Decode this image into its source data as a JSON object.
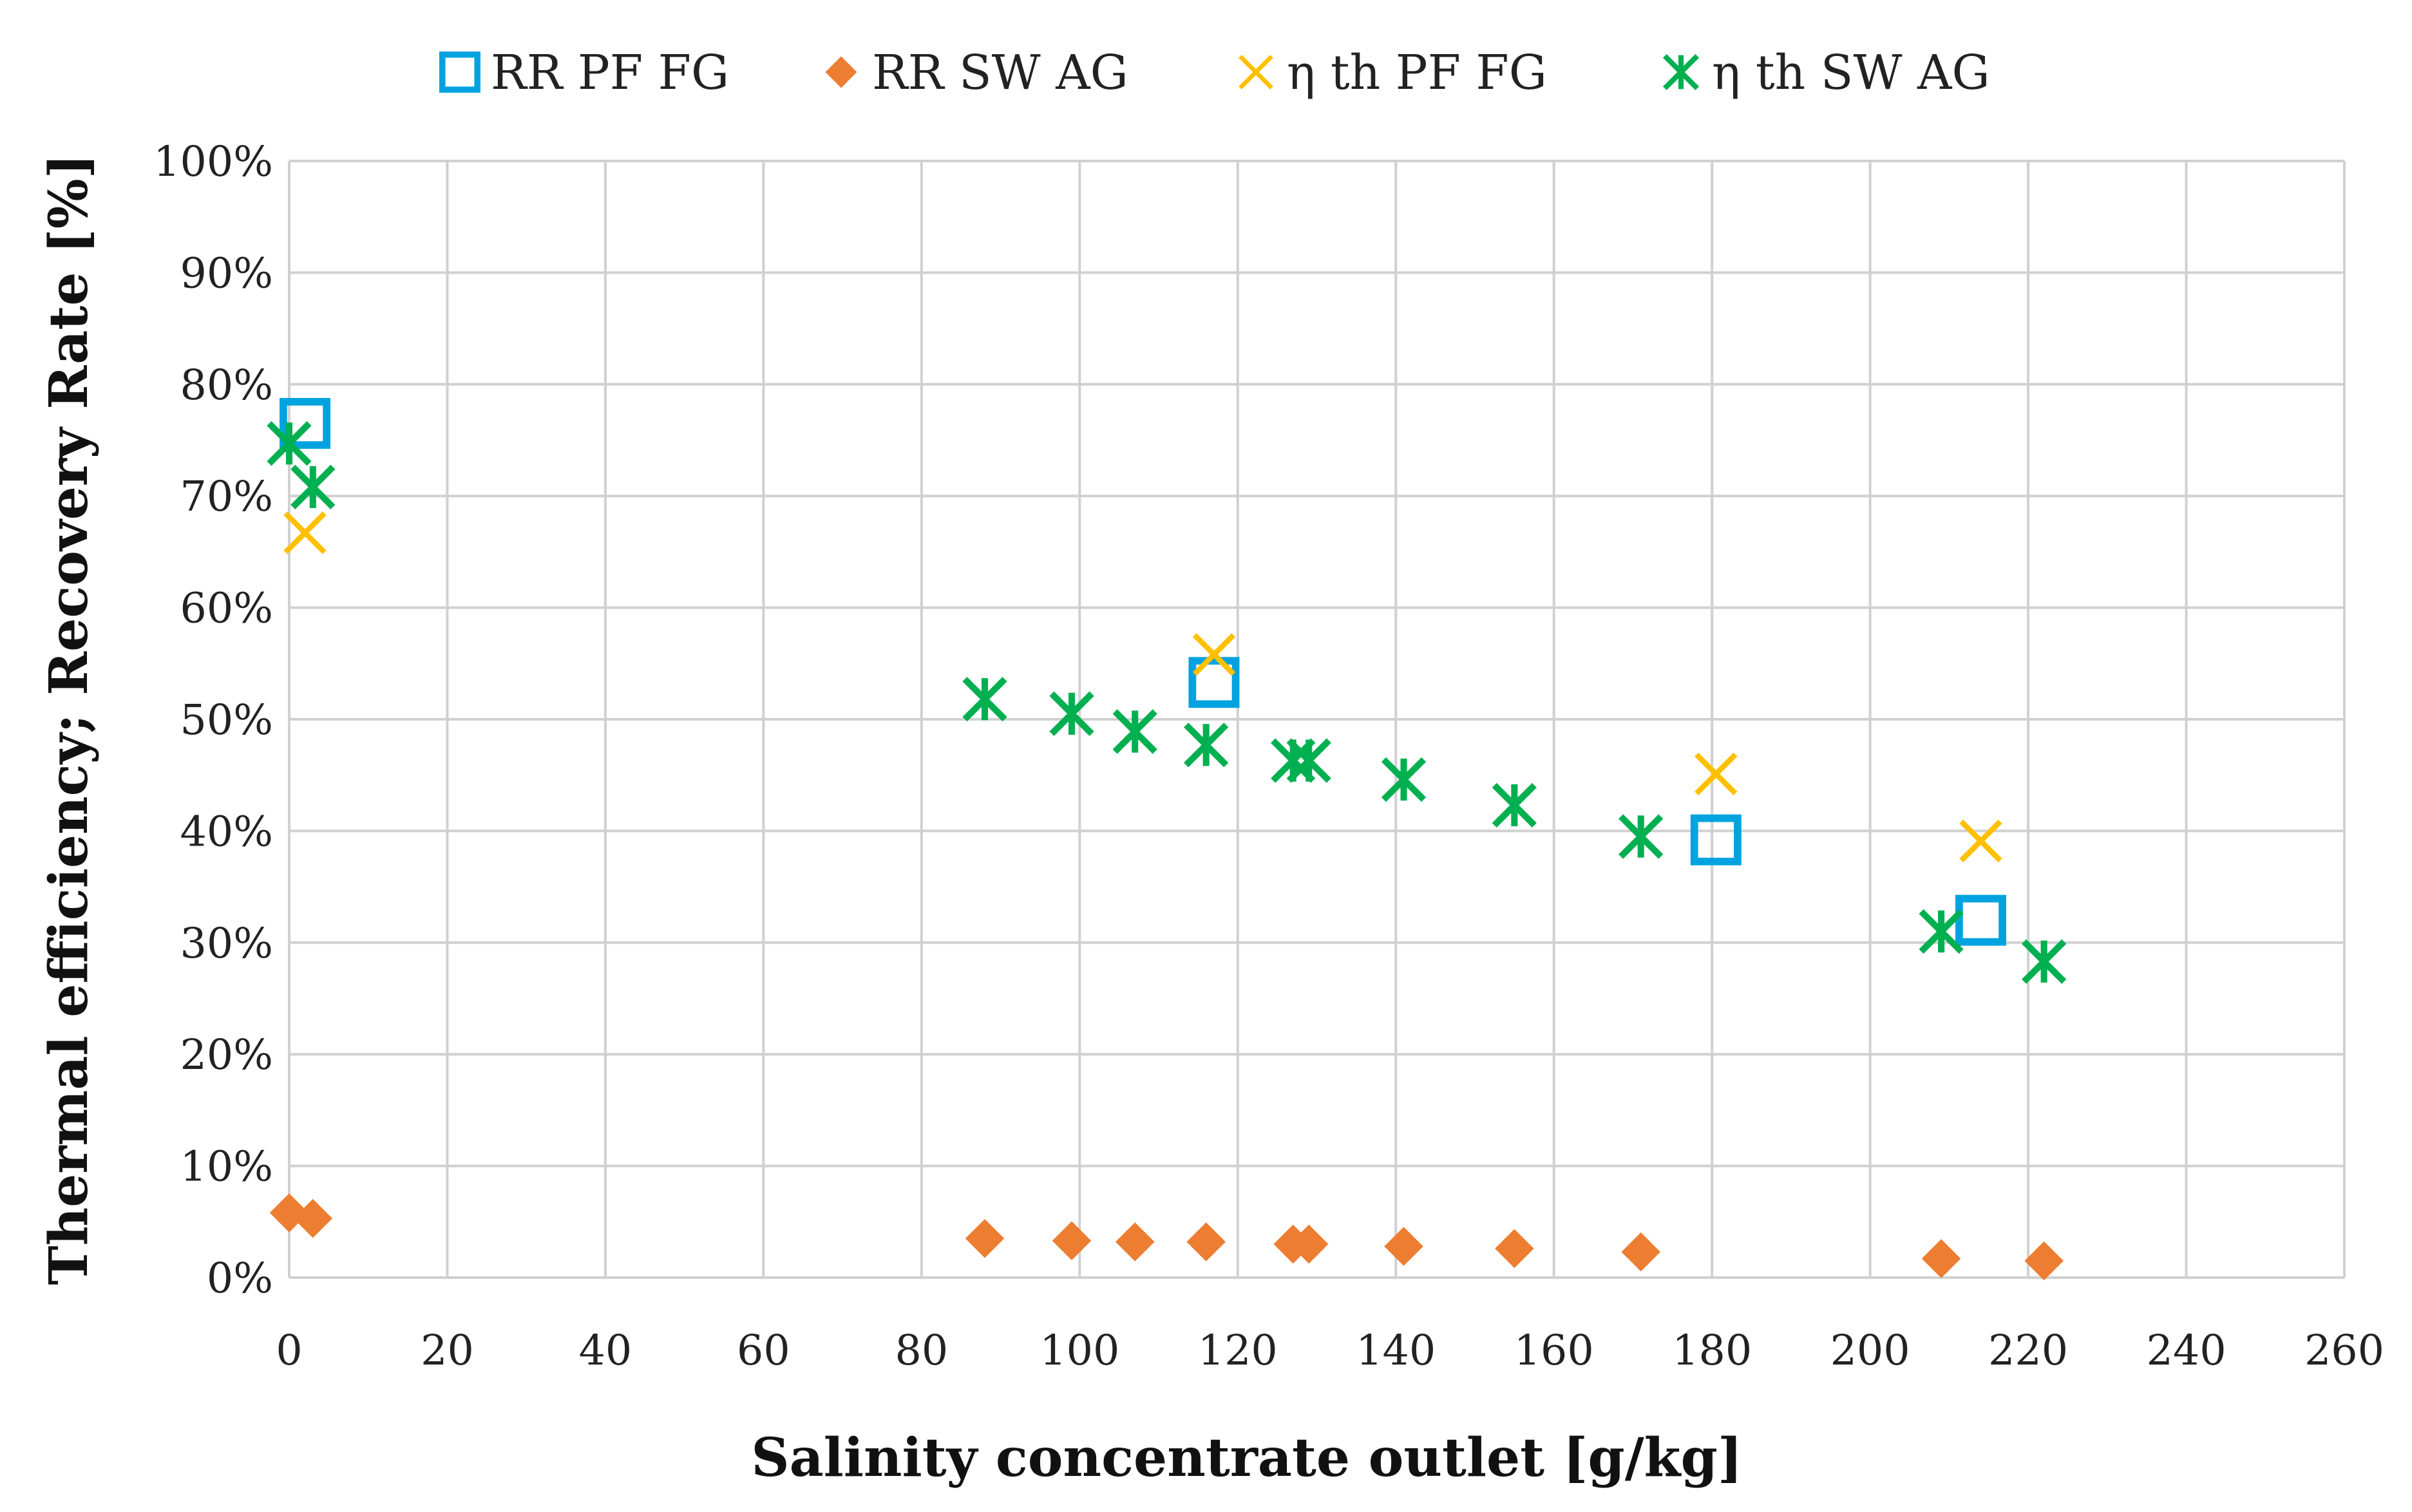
{
  "chart_data": {
    "type": "scatter",
    "title": "",
    "xlabel": "Salinity  concentrate outlet [g/kg]",
    "ylabel": "Thermal efficiency; Recovery Rate [%]",
    "xlim": [
      0,
      260
    ],
    "ylim": [
      0,
      100
    ],
    "grid": true,
    "legend_position": "top",
    "x_ticks": [
      "0",
      "20",
      "40",
      "60",
      "80",
      "100",
      "120",
      "140",
      "160",
      "180",
      "200",
      "220",
      "240",
      "260"
    ],
    "y_ticks": [
      "0%",
      "10%",
      "20%",
      "30%",
      "40%",
      "50%",
      "60%",
      "70%",
      "80%",
      "90%",
      "100%"
    ],
    "series": [
      {
        "name": "RR PF FG",
        "marker": "square",
        "color": "#00A3E0",
        "points": [
          [
            2,
            76.5
          ],
          [
            117,
            53.3
          ],
          [
            180.5,
            39.2
          ],
          [
            214,
            32
          ]
        ]
      },
      {
        "name": "RR SW AG",
        "marker": "diamond",
        "color": "#ED7D31",
        "points": [
          [
            0,
            5.8
          ],
          [
            3,
            5.3
          ],
          [
            88,
            3.5
          ],
          [
            99,
            3.3
          ],
          [
            107,
            3.2
          ],
          [
            116,
            3.2
          ],
          [
            127,
            3.0
          ],
          [
            129,
            3.0
          ],
          [
            141,
            2.8
          ],
          [
            155,
            2.6
          ],
          [
            171,
            2.3
          ],
          [
            209,
            1.7
          ],
          [
            222,
            1.5
          ]
        ]
      },
      {
        "name": "η th PF FG",
        "marker": "x",
        "color": "#FFC000",
        "points": [
          [
            2,
            66.7
          ],
          [
            117,
            55.8
          ],
          [
            180.5,
            45.1
          ],
          [
            214,
            39.1
          ]
        ]
      },
      {
        "name": "η th SW AG",
        "marker": "star",
        "color": "#00B050",
        "points": [
          [
            0,
            74.7
          ],
          [
            3,
            70.8
          ],
          [
            88,
            51.8
          ],
          [
            99,
            50.5
          ],
          [
            107,
            48.9
          ],
          [
            116,
            47.7
          ],
          [
            127,
            46.3
          ],
          [
            129,
            46.3
          ],
          [
            141,
            44.6
          ],
          [
            155,
            42.3
          ],
          [
            171,
            39.5
          ],
          [
            209,
            31.0
          ],
          [
            222,
            28.3
          ]
        ]
      }
    ]
  }
}
